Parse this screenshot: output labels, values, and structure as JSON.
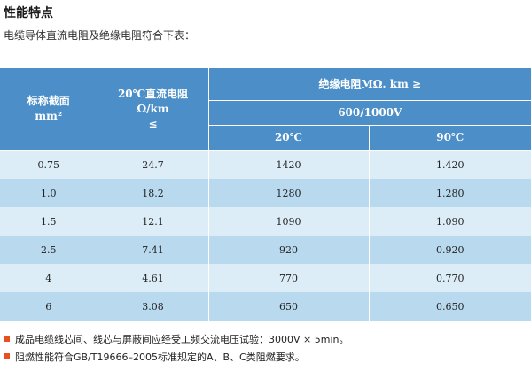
{
  "title": "性能特点",
  "intro": "电缆导体直流电阻及绝缘电阻符合下表：",
  "colors": {
    "header_bg": "#4c8ec8",
    "row_light": "#ddedf7",
    "row_mid": "#b9d9ef",
    "bullet": "#e8511f"
  },
  "table": {
    "header": {
      "col1_line1": "标称截面",
      "col1_line2": "mm²",
      "col2_line1": "20℃直流电阻",
      "col2_line2": "Ω/km",
      "col2_line3": "≤",
      "group": "绝缘电阻MΩ. km ≥",
      "voltage": "600/1000V",
      "temp_20": "20℃",
      "temp_90": "90℃"
    },
    "rows": [
      {
        "size": "0.75",
        "dc": "24.7",
        "ir20": "1420",
        "ir90": "1.420"
      },
      {
        "size": "1.0",
        "dc": "18.2",
        "ir20": "1280",
        "ir90": "1.280"
      },
      {
        "size": "1.5",
        "dc": "12.1",
        "ir20": "1090",
        "ir90": "1.090"
      },
      {
        "size": "2.5",
        "dc": "7.41",
        "ir20": "920",
        "ir90": "0.920"
      },
      {
        "size": "4",
        "dc": "4.61",
        "ir20": "770",
        "ir90": "0.770"
      },
      {
        "size": "6",
        "dc": "3.08",
        "ir20": "650",
        "ir90": "0.650"
      }
    ]
  },
  "notes": [
    "成品电缆线芯间、线芯与屏蔽间应经受工频交流电压试验：3000V × 5min。",
    "阻燃性能符合GB/T19666–2005标准规定的A、B、C类阻燃要求。"
  ]
}
